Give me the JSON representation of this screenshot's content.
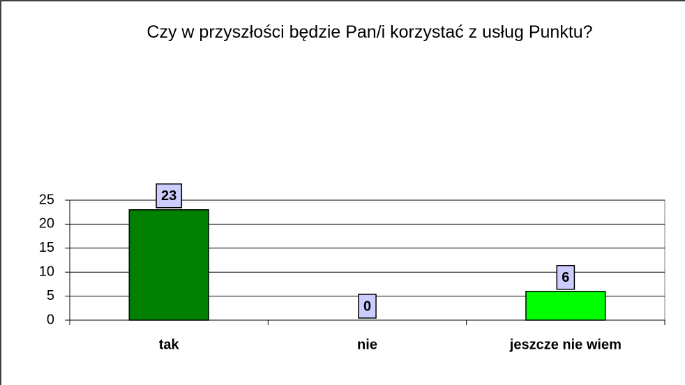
{
  "chart_data": {
    "type": "bar",
    "title": "Czy w przyszłości będzie Pan/i korzystać z usług Punktu?",
    "categories": [
      "tak",
      "nie",
      "jeszcze nie wiem"
    ],
    "values": [
      23,
      0,
      6
    ],
    "colors": [
      "#007f00",
      null,
      "#00ff00"
    ],
    "ylim": [
      0,
      25
    ],
    "yticks": [
      0,
      5,
      10,
      15,
      20,
      25
    ],
    "grid": true
  }
}
